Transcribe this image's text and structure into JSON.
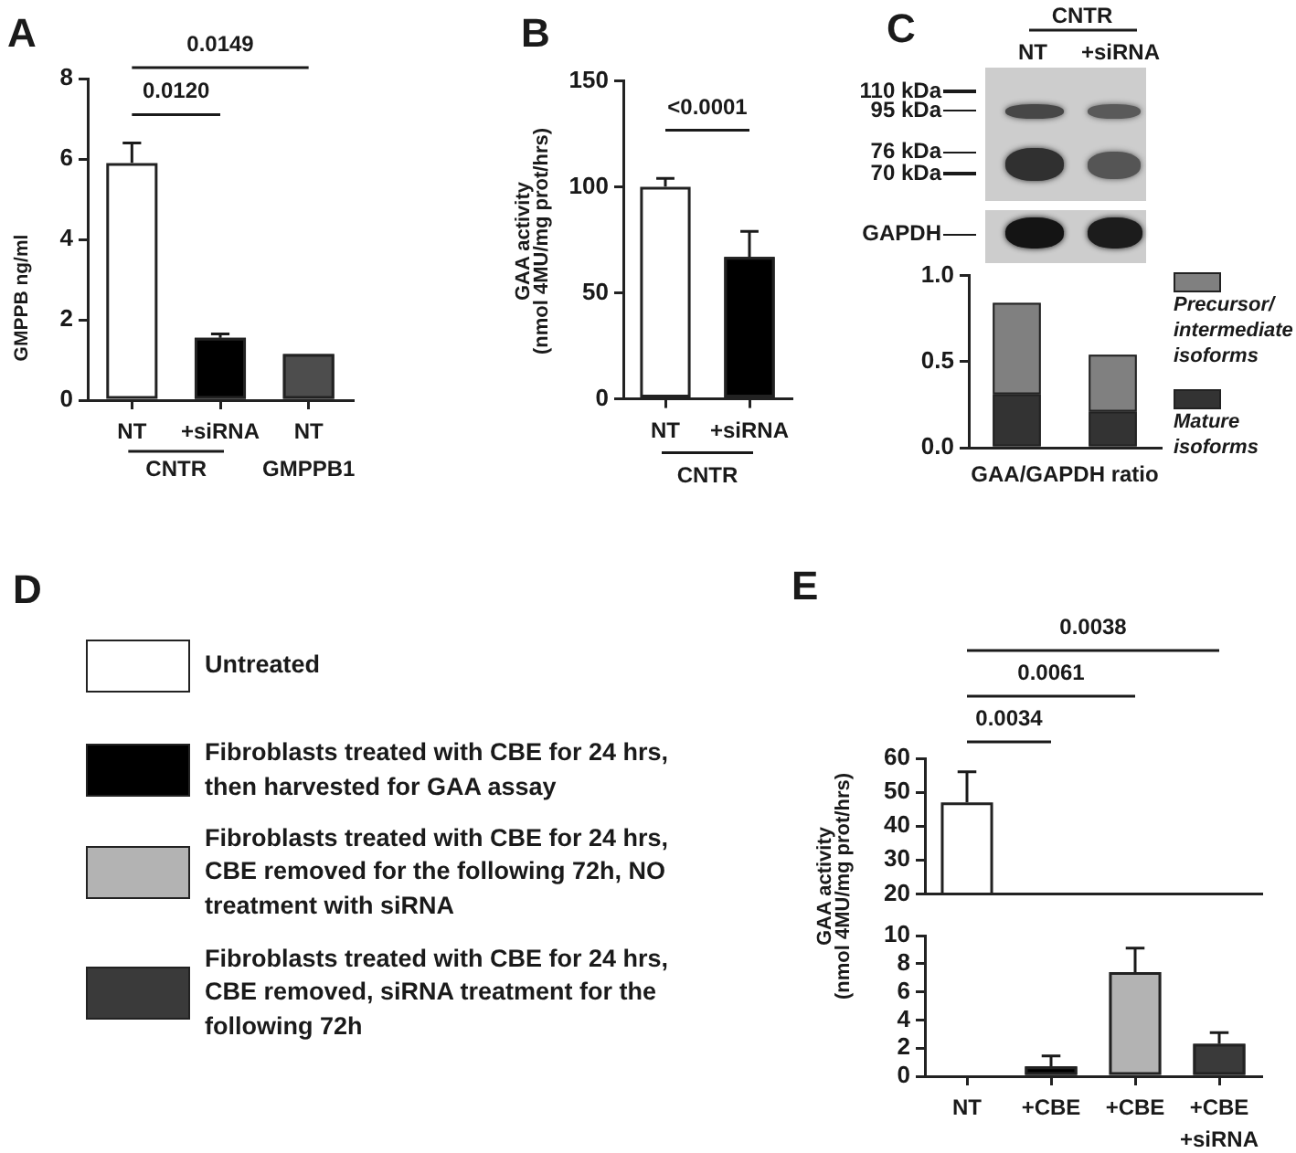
{
  "chart_data": [
    {
      "type": "bar",
      "title": "A",
      "ylabel": "GMPPB ng/ml",
      "categories": [
        "NT",
        "+siRNA",
        "NT"
      ],
      "values": [
        5.9,
        1.55,
        1.15
      ],
      "colors": [
        "#ffffff",
        "#000000",
        "#4d4d4d"
      ],
      "errors": [
        [
          5.9,
          6.4
        ],
        [
          1.55,
          1.65
        ],
        null
      ],
      "ylim": [
        0,
        8
      ],
      "yticks": [
        0,
        2,
        4,
        6,
        8
      ],
      "annotations": [
        "0.0120",
        "0.0149",
        "CNTR",
        "GMPPB1"
      ]
    },
    {
      "type": "bar",
      "title": "B",
      "ylabel": "GAA activity (nmol 4MU/mg prot/hrs)",
      "categories": [
        "NT",
        "+siRNA"
      ],
      "values": [
        100,
        67
      ],
      "colors": [
        "#ffffff",
        "#000000"
      ],
      "errors": [
        [
          100,
          104
        ],
        [
          67,
          79
        ]
      ],
      "ylim": [
        0,
        150
      ],
      "yticks": [
        0,
        50,
        100,
        150
      ],
      "annotations": [
        "<0.0001",
        "CNTR"
      ]
    },
    {
      "type": "bar",
      "title": "C",
      "xlabel": "GAA/GAPDH ratio",
      "categories": [
        null,
        null
      ],
      "stacked": true,
      "series": [
        {
          "name": "Mature isoforms",
          "color": "#333333",
          "values": [
            0.31,
            0.21
          ]
        },
        {
          "name": "Precursor/ intermediate isoforms",
          "color": "#808080",
          "values": [
            0.53,
            0.33
          ]
        }
      ],
      "ylim": [
        0,
        1
      ],
      "yticks": [
        {
          "value": 0,
          "label": "0.0"
        },
        {
          "value": 0.5,
          "label": "0.5"
        },
        {
          "value": 1,
          "label": "1.0"
        }
      ],
      "legend": "right",
      "annotations": [
        "CNTR",
        "NT",
        "+siRNA",
        "110 kDa",
        "95 kDa",
        "76 kDa",
        "70 kDa",
        "GAPDH"
      ]
    },
    {
      "type": "other",
      "title": "D",
      "annotations": [
        "Untreated",
        "Fibroblasts treated with CBE for 24 hrs, then harvested for GAA assay",
        "Fibroblasts treated with CBE for 24 hrs, CBE removed for the following 72h, NO treatment with siRNA",
        "Fibroblasts treated with CBE for 24 hrs, CBE removed, siRNA treatment for the following 72h"
      ]
    },
    {
      "type": "bar",
      "title": "E",
      "categories": [
        null,
        null,
        null,
        null
      ],
      "values": [
        47,
        null,
        null,
        null
      ],
      "colors": [
        "#ffffff",
        null,
        null,
        null
      ],
      "errors": [
        [
          47,
          56
        ],
        null,
        null,
        null
      ],
      "ylim": [
        20,
        60
      ],
      "yticks": [
        20,
        30,
        40,
        50,
        60
      ],
      "tick_labels": "y",
      "annotations": [
        "0.0034",
        "0.0061",
        "0.0038"
      ]
    },
    {
      "type": "bar",
      "ylabel": "GAA activity (nmol 4MU/mg prot/hrs)",
      "categories": [
        "NT",
        "+CBE",
        "+CBE",
        "+CBE +siRNA"
      ],
      "values": [
        null,
        0.7,
        7.4,
        2.3
      ],
      "colors": [
        null,
        "#000000",
        "#b3b3b3",
        "#3a3a3a"
      ],
      "errors": [
        null,
        [
          0.7,
          1.45
        ],
        [
          7.4,
          9.1
        ],
        [
          2.3,
          3.1
        ]
      ],
      "ylim": [
        0,
        10
      ],
      "yticks": [
        0,
        2,
        4,
        6,
        8,
        10
      ]
    }
  ]
}
